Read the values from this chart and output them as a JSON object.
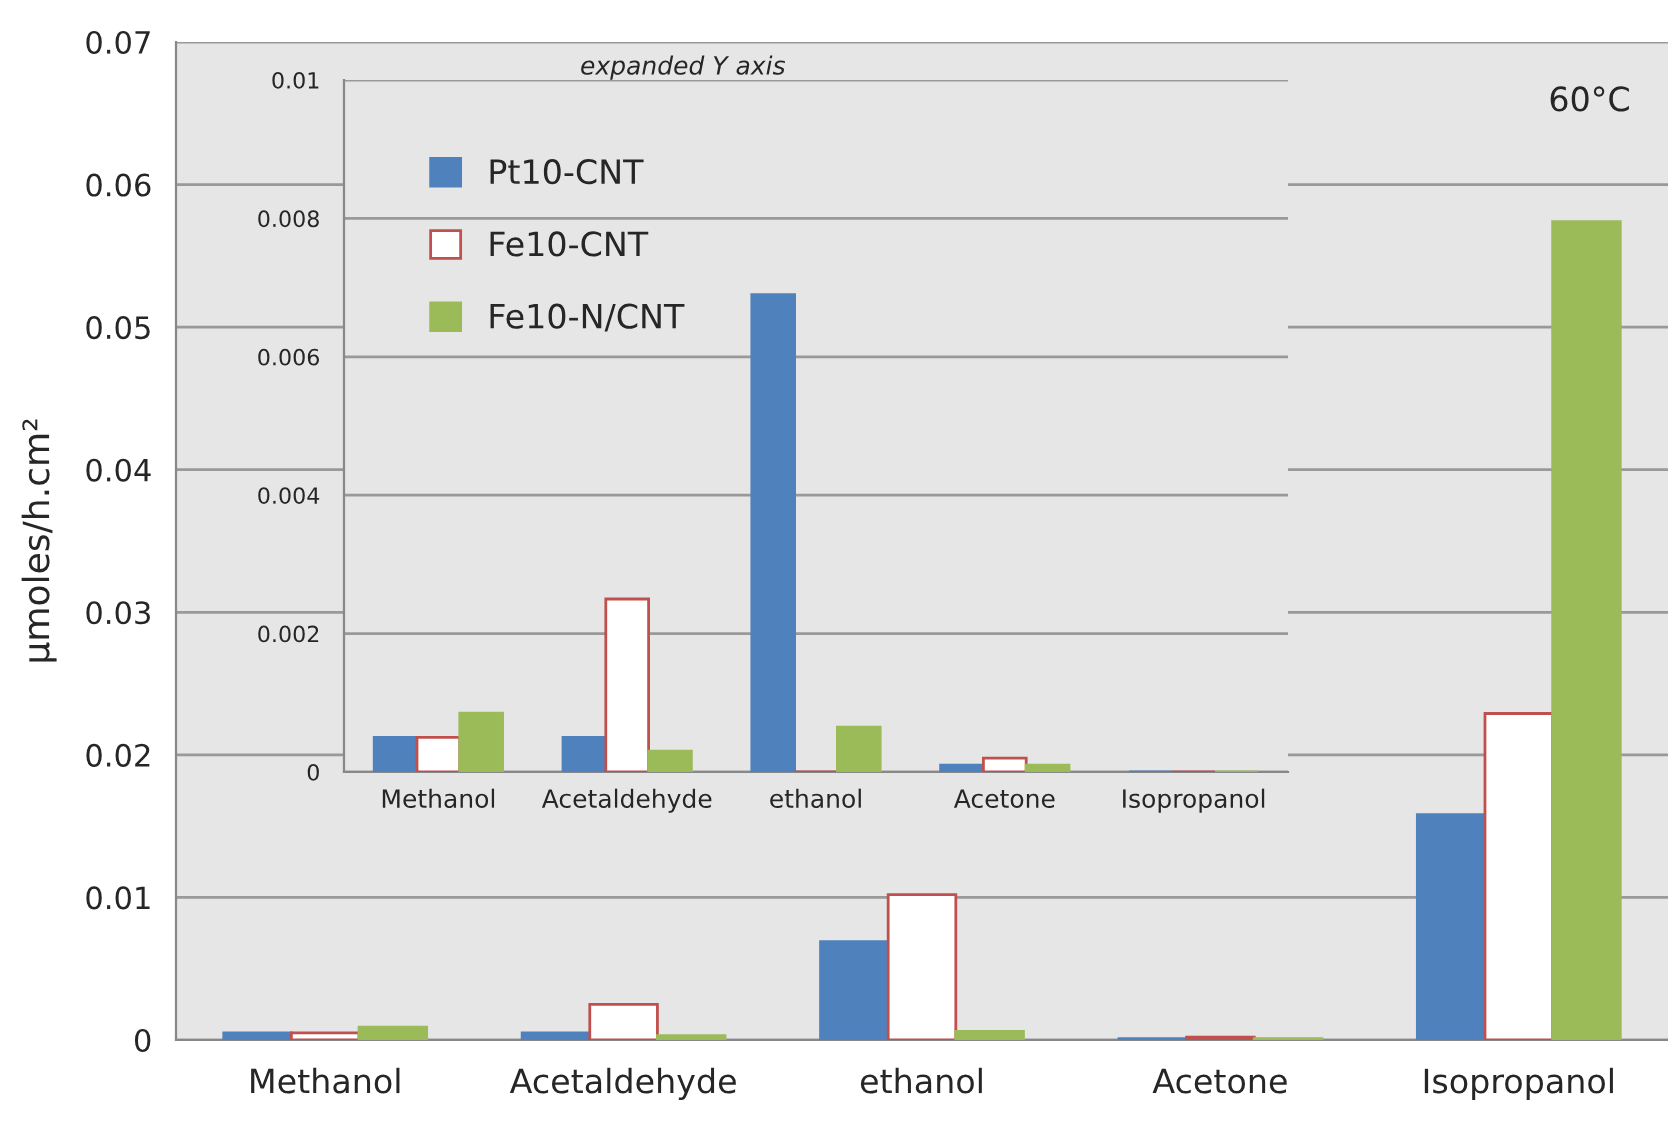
{
  "chart_data": [
    {
      "type": "bar",
      "ylabel": "μmoles/h.cm²",
      "categories": [
        "Methanol",
        "Acetaldehyde",
        "ethanol",
        "Acetone",
        "Isopropanol"
      ],
      "series": [
        {
          "color": "#4f81bd",
          "values": [
            0.0005,
            0.0005,
            0.0069,
            0.0001,
            0.0158
          ]
        },
        {
          "color": "#ffffff",
          "values": [
            0.0005,
            0.0025,
            0.0102,
            0.0002,
            0.0229
          ]
        },
        {
          "color": "#9bbb59",
          "values": [
            0.0009,
            0.0003,
            0.0006,
            0.0001,
            0.0574
          ]
        }
      ],
      "ylim": [
        0,
        0.07
      ],
      "yticks": [
        0,
        0.01,
        0.02,
        0.03,
        0.04,
        0.05,
        0.06,
        0.07
      ],
      "grid": "y",
      "legend": false,
      "annotations": [
        "60°C"
      ]
    },
    {
      "type": "bar",
      "title": "expanded Y axis",
      "categories": [
        "Methanol",
        "Acetaldehyde",
        "ethanol",
        "Acetone",
        "Isopropanol"
      ],
      "series": [
        {
          "name": "Pt10-CNT",
          "color": "#4f81bd",
          "values": [
            0.0005,
            0.0005,
            0.0069,
            0.0001,
            null
          ]
        },
        {
          "name": "Fe10-CNT",
          "color": "#ffffff",
          "values": [
            0.0005,
            0.0025,
            null,
            0.0002,
            null
          ]
        },
        {
          "name": "Fe10-N/CNT",
          "color": "#9bbb59",
          "values": [
            0.00085,
            0.0003,
            0.00065,
            0.0001,
            null
          ]
        }
      ],
      "ylim": [
        0,
        0.01
      ],
      "yticks": [
        0,
        0.002,
        0.004,
        0.006,
        0.008,
        0.01
      ],
      "grid": "y",
      "legend": "top left"
    }
  ]
}
